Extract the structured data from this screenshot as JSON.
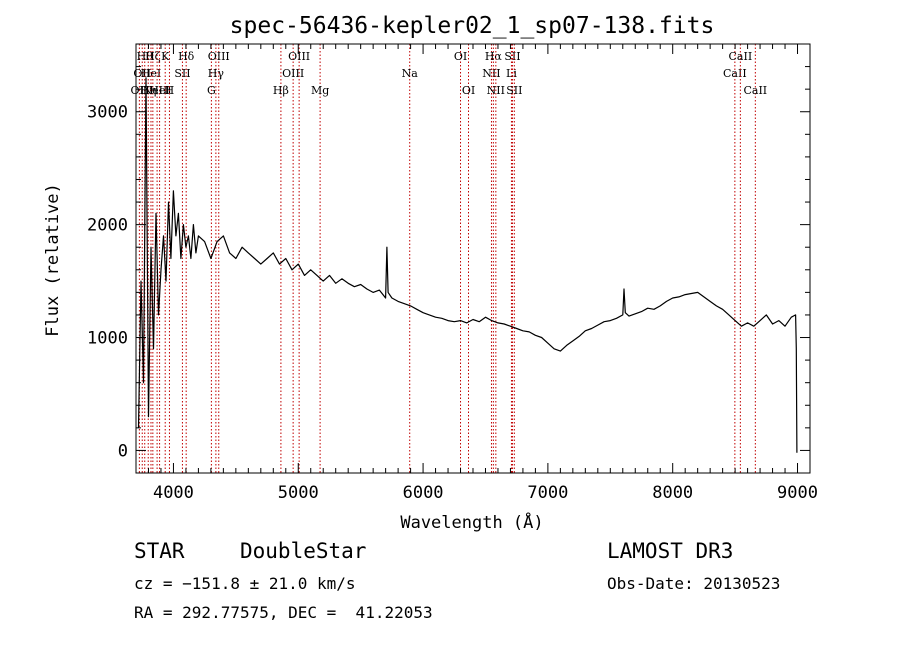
{
  "chart_data": {
    "type": "line",
    "title": "spec-56436-kepler02_1_sp07-138.fits",
    "xlabel": "Wavelength (Å)",
    "ylabel": "Flux (relative)",
    "xlim": [
      3700,
      9100
    ],
    "ylim": [
      -200,
      3600
    ],
    "xticks": [
      4000,
      5000,
      6000,
      7000,
      8000,
      9000
    ],
    "xtick_labels": [
      "4000",
      "5000",
      "6000",
      "7000",
      "8000",
      "9000"
    ],
    "yticks": [
      0,
      1000,
      2000,
      3000
    ],
    "ytick_labels": [
      "0",
      "1000",
      "2000",
      "3000"
    ],
    "series": [
      {
        "name": "spectrum",
        "x": [
          3720,
          3740,
          3760,
          3780,
          3800,
          3820,
          3840,
          3860,
          3880,
          3900,
          3920,
          3940,
          3960,
          3980,
          4000,
          4020,
          4040,
          4060,
          4080,
          4100,
          4120,
          4140,
          4160,
          4180,
          4200,
          4250,
          4300,
          4350,
          4400,
          4450,
          4500,
          4550,
          4600,
          4650,
          4700,
          4750,
          4800,
          4850,
          4900,
          4950,
          5000,
          5050,
          5100,
          5150,
          5200,
          5250,
          5300,
          5350,
          5400,
          5450,
          5500,
          5550,
          5600,
          5650,
          5700,
          5710,
          5720,
          5750,
          5800,
          5850,
          5900,
          5950,
          6000,
          6050,
          6100,
          6150,
          6200,
          6250,
          6300,
          6350,
          6400,
          6450,
          6500,
          6550,
          6600,
          6650,
          6700,
          6750,
          6800,
          6850,
          6900,
          6950,
          7000,
          7050,
          7100,
          7150,
          7200,
          7250,
          7300,
          7350,
          7400,
          7450,
          7500,
          7550,
          7600,
          7610,
          7620,
          7650,
          7700,
          7750,
          7800,
          7850,
          7900,
          7950,
          8000,
          8050,
          8100,
          8150,
          8200,
          8250,
          8300,
          8350,
          8400,
          8450,
          8500,
          8550,
          8600,
          8650,
          8700,
          8750,
          8800,
          8850,
          8900,
          8950,
          8985,
          8990,
          8995
        ],
        "y": [
          200,
          1500,
          600,
          3300,
          300,
          1800,
          900,
          2100,
          1200,
          1600,
          1900,
          1500,
          2200,
          1700,
          2300,
          1900,
          2100,
          1700,
          2000,
          1800,
          1900,
          1700,
          2000,
          1750,
          1900,
          1850,
          1700,
          1850,
          1900,
          1750,
          1700,
          1800,
          1750,
          1700,
          1650,
          1700,
          1750,
          1650,
          1700,
          1600,
          1650,
          1550,
          1600,
          1550,
          1500,
          1550,
          1480,
          1520,
          1480,
          1450,
          1470,
          1430,
          1400,
          1420,
          1350,
          1800,
          1400,
          1350,
          1320,
          1300,
          1280,
          1250,
          1220,
          1200,
          1180,
          1170,
          1150,
          1140,
          1150,
          1130,
          1160,
          1140,
          1180,
          1150,
          1130,
          1120,
          1100,
          1080,
          1060,
          1050,
          1020,
          1000,
          950,
          900,
          880,
          930,
          970,
          1010,
          1060,
          1080,
          1110,
          1140,
          1150,
          1170,
          1200,
          1430,
          1220,
          1190,
          1210,
          1230,
          1260,
          1250,
          1280,
          1320,
          1350,
          1360,
          1380,
          1390,
          1400,
          1360,
          1320,
          1280,
          1250,
          1200,
          1150,
          1100,
          1130,
          1100,
          1150,
          1200,
          1120,
          1150,
          1100,
          1180,
          1200,
          900,
          -20
        ]
      }
    ],
    "lines": [
      {
        "wl": 3727,
        "label": "OII",
        "row": 3
      },
      {
        "wl": 3750,
        "label": "OII",
        "row": 2
      },
      {
        "wl": 3770,
        "label": "Hθ",
        "row": 1
      },
      {
        "wl": 3798,
        "label": "Hη",
        "row": 3
      },
      {
        "wl": 3820,
        "label": "HeI",
        "row": 2
      },
      {
        "wl": 3835,
        "label": "Hζ",
        "row": 1
      },
      {
        "wl": 3869,
        "label": "NeIII",
        "row": 3
      },
      {
        "wl": 3889,
        "label": "HeI",
        "row": 3
      },
      {
        "wl": 3934,
        "label": "K",
        "row": 1
      },
      {
        "wl": 3968,
        "label": "H",
        "row": 3
      },
      {
        "wl": 4072,
        "label": "SII",
        "row": 2
      },
      {
        "wl": 4102,
        "label": "Hδ",
        "row": 1
      },
      {
        "wl": 4304,
        "label": "G",
        "row": 3
      },
      {
        "wl": 4340,
        "label": "Hγ",
        "row": 2
      },
      {
        "wl": 4363,
        "label": "OIII",
        "row": 1
      },
      {
        "wl": 4861,
        "label": "Hβ",
        "row": 3
      },
      {
        "wl": 4959,
        "label": "OIII",
        "row": 2
      },
      {
        "wl": 5007,
        "label": "OIII",
        "row": 1
      },
      {
        "wl": 5175,
        "label": "Mg",
        "row": 3
      },
      {
        "wl": 5893,
        "label": "Na",
        "row": 2
      },
      {
        "wl": 6300,
        "label": "OI",
        "row": 1
      },
      {
        "wl": 6364,
        "label": "OI",
        "row": 3
      },
      {
        "wl": 6548,
        "label": "NII",
        "row": 2
      },
      {
        "wl": 6563,
        "label": "Hα",
        "row": 1
      },
      {
        "wl": 6583,
        "label": "NII",
        "row": 3
      },
      {
        "wl": 6708,
        "label": "Li",
        "row": 2
      },
      {
        "wl": 6716,
        "label": "SII",
        "row": 1
      },
      {
        "wl": 6731,
        "label": "SII",
        "row": 3
      },
      {
        "wl": 8498,
        "label": "CaII",
        "row": 2
      },
      {
        "wl": 8542,
        "label": "CaII",
        "row": 1
      },
      {
        "wl": 8662,
        "label": "CaII",
        "row": 3
      }
    ]
  },
  "info": {
    "class": "STAR",
    "subclass": "DoubleStar",
    "survey": "LAMOST DR3",
    "cz": "cz = −151.8 ± 21.0 km/s",
    "obs_date": "Obs-Date: 20130523",
    "coords": "RA = 292.77575, DEC =  41.22053"
  },
  "colors": {
    "line_marker": "#c00000",
    "spectrum": "#000000"
  }
}
